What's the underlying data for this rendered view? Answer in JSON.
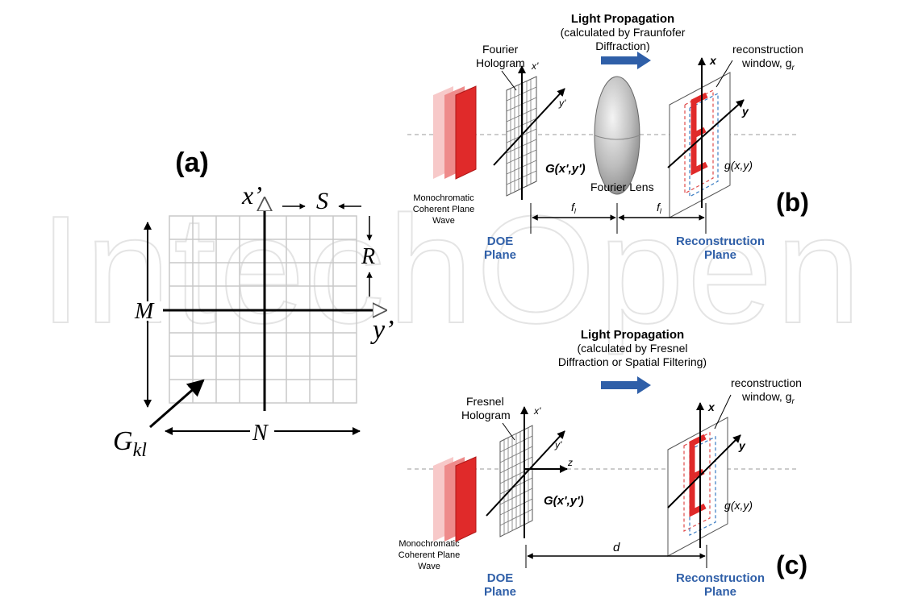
{
  "watermark": "IntechOpen",
  "panel_a": {
    "label": "(a)",
    "x_axis": "x’",
    "y_axis": "y’",
    "S": "S",
    "R": "R",
    "M": "M",
    "N": "N",
    "G": "G",
    "G_sub": "kl"
  },
  "panel_b": {
    "label": "(b)",
    "title": "Light Propagation",
    "subtitle_1": "(calculated by Fraunfofer",
    "subtitle_2": "Diffraction)",
    "hologram_1": "Fourier",
    "hologram_2": "Hologram",
    "window_1": "reconstruction",
    "window_2": "window, g",
    "window_sub": "r",
    "x_prime": "x'",
    "y_prime": "y'",
    "x": "x",
    "y": "y",
    "G_field": "G(x',y')",
    "g_field": "g(x,y)",
    "lens": "Fourier Lens",
    "source_1": "Monochromatic",
    "source_2": "Coherent Plane",
    "source_3": "Wave",
    "f1": "f",
    "f2": "f",
    "f_sub": "l",
    "doe_1": "DOE",
    "doe_2": "Plane",
    "recon_1": "Reconstruction",
    "recon_2": "Plane"
  },
  "panel_c": {
    "label": "(c)",
    "title": "Light Propagation",
    "subtitle_1": "(calculated by Fresnel",
    "subtitle_2": "Diffraction or Spatial Filtering)",
    "hologram_1": "Fresnel",
    "hologram_2": "Hologram",
    "window_1": "reconstruction",
    "window_2": "window, g",
    "window_sub": "r",
    "x_prime": "x'",
    "y_prime": "y'",
    "z": "z",
    "x": "x",
    "y": "y",
    "G_field": "G(x',y')",
    "g_field": "g(x,y)",
    "source_1": "Monochromatic",
    "source_2": "Coherent Plane",
    "source_3": "Wave",
    "d": "d",
    "doe_1": "DOE",
    "doe_2": "Plane",
    "recon_1": "Reconstruction",
    "recon_2": "Plane"
  },
  "colors": {
    "accent_blue": "#2f5fa8",
    "laser_red": "#e02a2a",
    "grid": "#c8c8c8"
  }
}
